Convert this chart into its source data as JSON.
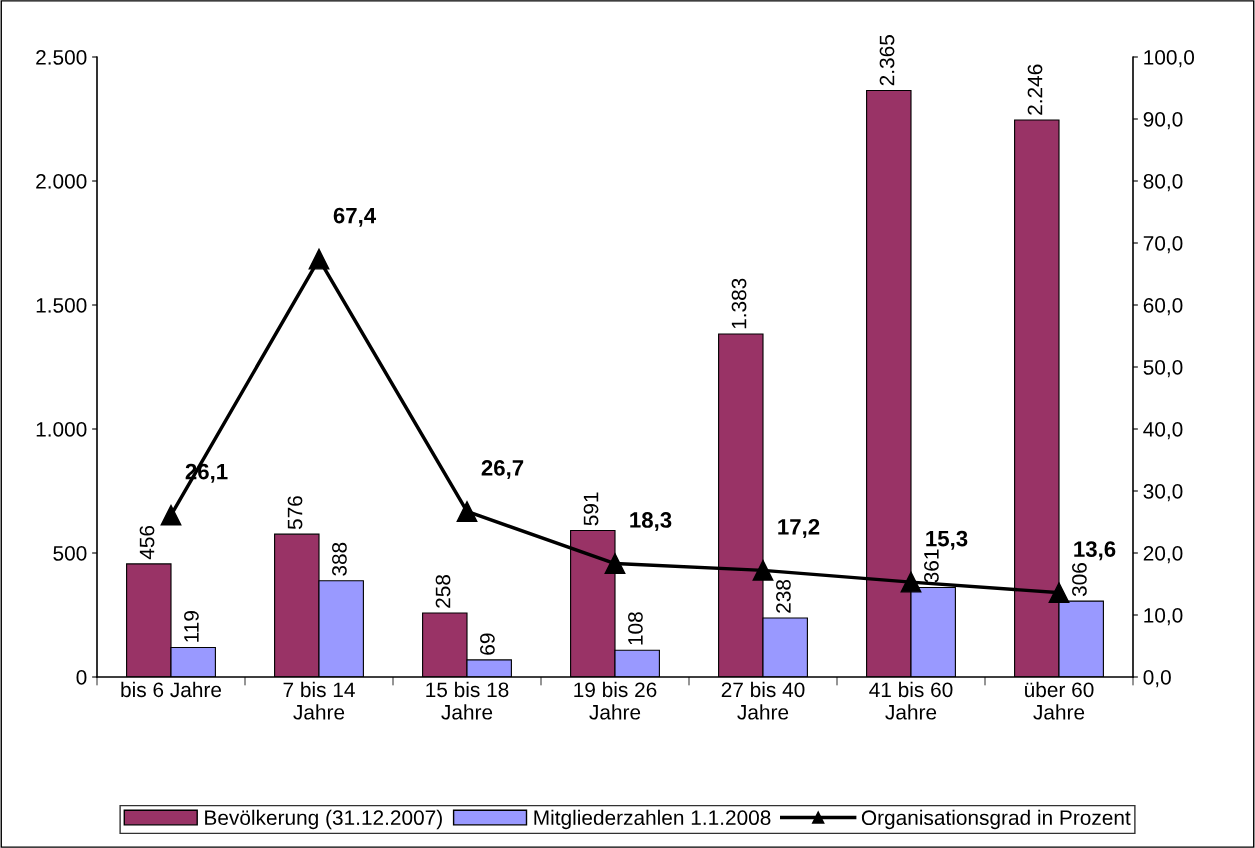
{
  "chart_data": {
    "type": "bar",
    "categories": [
      "bis 6 Jahre",
      "7 bis 14\nJahre",
      "15 bis 18\nJahre",
      "19 bis 26\nJahre",
      "27 bis 40\nJahre",
      "41 bis 60\nJahre",
      "über 60\nJahre"
    ],
    "series": [
      {
        "name": "Bevölkerung (31.12.2007)",
        "color": "#993366",
        "values": [
          456,
          576,
          258,
          591,
          1383,
          2365,
          2246
        ],
        "value_labels": [
          "456",
          "576",
          "258",
          "591",
          "1.383",
          "2.365",
          "2.246"
        ]
      },
      {
        "name": "Mitgliederzahlen 1.1.2008",
        "color": "#9999ff",
        "values": [
          119,
          388,
          69,
          108,
          238,
          361,
          306
        ],
        "value_labels": [
          "119",
          "388",
          "69",
          "108",
          "238",
          "361",
          "306"
        ]
      },
      {
        "name": "Organisationsgrad in Prozent",
        "type": "line",
        "axis": "y2",
        "color": "#000000",
        "marker": "triangle",
        "values": [
          26.1,
          67.4,
          26.7,
          18.3,
          17.2,
          15.3,
          13.6
        ],
        "value_labels": [
          "26,1",
          "67,4",
          "26,7",
          "18,3",
          "17,2",
          "15,3",
          "13,6"
        ]
      }
    ],
    "ylim": [
      0,
      2500
    ],
    "yticks": [
      0,
      500,
      {
        "value": 1000,
        "label": "1.000"
      },
      {
        "value": 1500,
        "label": "1.500"
      },
      {
        "value": 2000,
        "label": "2.000"
      },
      {
        "value": 2500,
        "label": "2.500"
      }
    ],
    "y2lim": [
      0,
      100
    ],
    "y2ticks": [
      {
        "value": 0,
        "label": "0,0"
      },
      {
        "value": 10,
        "label": "10,0"
      },
      {
        "value": 20,
        "label": "20,0"
      },
      {
        "value": 30,
        "label": "30,0"
      },
      {
        "value": 40,
        "label": "40,0"
      },
      {
        "value": 50,
        "label": "50,0"
      },
      {
        "value": 60,
        "label": "60,0"
      },
      {
        "value": 70,
        "label": "70,0"
      },
      {
        "value": 80,
        "label": "80,0"
      },
      {
        "value": 90,
        "label": "90,0"
      },
      {
        "value": 100,
        "label": "100,0"
      }
    ],
    "grid": false,
    "legend": "bottom"
  }
}
